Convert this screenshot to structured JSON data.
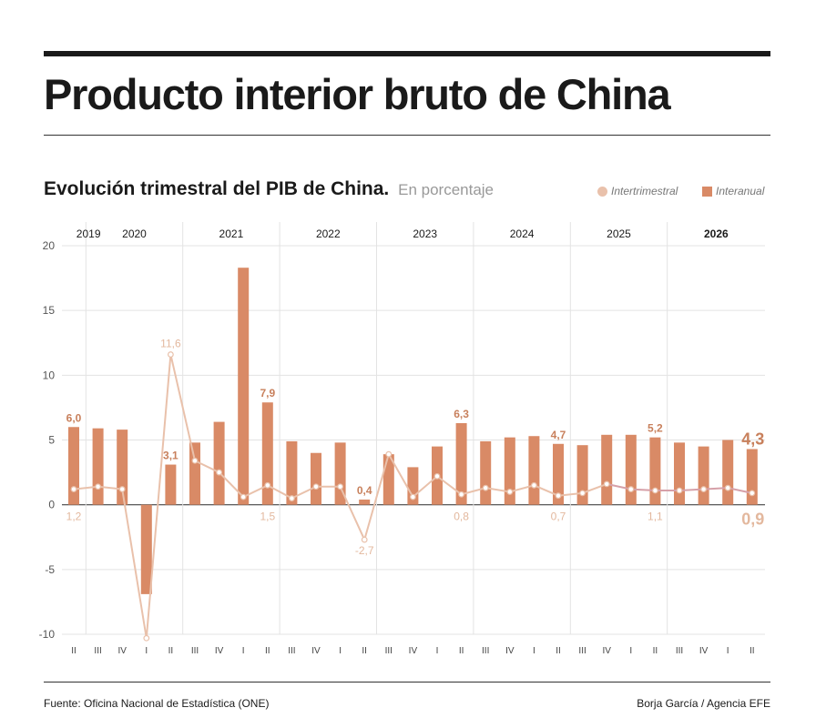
{
  "header": {
    "title": "Producto interior bruto de China",
    "subtitle": "Evolución trimestral del PIB de China.",
    "unit": "En porcentaje"
  },
  "legend": {
    "line_label": "Intertrimestral",
    "bar_label": "Interanual"
  },
  "footer": {
    "source": "Fuente: Oficina Nacional de Estadística (ONE)",
    "credit": "Borja García / Agencia EFE"
  },
  "colors": {
    "bar": "#d98a66",
    "line": "#e9c1ab",
    "line_recent": "#d6a0a8",
    "label_bar": "#c8805c",
    "label_line": "#e3b89e"
  },
  "chart_data": {
    "type": "bar",
    "ylim": [
      -10,
      20
    ],
    "yticks": [
      20,
      15,
      10,
      5,
      0,
      -5,
      -10
    ],
    "years": [
      {
        "label": "2019",
        "bold": false
      },
      {
        "label": "2020",
        "bold": false
      },
      {
        "label": "2021",
        "bold": false
      },
      {
        "label": "2022",
        "bold": false
      },
      {
        "label": "2023",
        "bold": false
      },
      {
        "label": "2024",
        "bold": false
      },
      {
        "label": "2025",
        "bold": false
      },
      {
        "label": "2026",
        "bold": true
      }
    ],
    "categories": [
      "II",
      "III",
      "IV",
      "I",
      "II",
      "III",
      "IV",
      "I",
      "II",
      "III",
      "IV",
      "I",
      "II",
      "III",
      "IV",
      "I",
      "II",
      "III",
      "IV",
      "I",
      "II",
      "III",
      "IV",
      "I",
      "II",
      "III",
      "IV",
      "I",
      "II"
    ],
    "series": [
      {
        "name": "Interanual",
        "kind": "bar",
        "values": [
          6.0,
          5.9,
          5.8,
          -6.9,
          3.1,
          4.8,
          6.4,
          18.3,
          7.9,
          4.9,
          4.0,
          4.8,
          0.4,
          3.9,
          2.9,
          4.5,
          6.3,
          4.9,
          5.2,
          5.3,
          4.7,
          4.6,
          5.4,
          5.4,
          5.2,
          4.8,
          4.5,
          5.0,
          4.3
        ],
        "labels": [
          {
            "index": 0,
            "text": "6,0"
          },
          {
            "index": 4,
            "text": "3,1"
          },
          {
            "index": 8,
            "text": "7,9"
          },
          {
            "index": 12,
            "text": "0,4"
          },
          {
            "index": 16,
            "text": "6,3"
          },
          {
            "index": 20,
            "text": "4,7"
          },
          {
            "index": 24,
            "text": "5,2"
          },
          {
            "index": 28,
            "text": "4,3",
            "emphasis": true
          }
        ]
      },
      {
        "name": "Intertrimestral",
        "kind": "line",
        "values": [
          1.2,
          1.4,
          1.2,
          -10.3,
          11.6,
          3.4,
          2.5,
          0.6,
          1.5,
          0.5,
          1.4,
          1.4,
          -2.7,
          3.9,
          0.6,
          2.2,
          0.8,
          1.3,
          1.0,
          1.5,
          0.7,
          0.9,
          1.6,
          1.2,
          1.1,
          1.1,
          1.2,
          1.3,
          0.9
        ],
        "labels": [
          {
            "index": 0,
            "text": "1,2"
          },
          {
            "index": 4,
            "text": "11,6"
          },
          {
            "index": 8,
            "text": "1,5"
          },
          {
            "index": 12,
            "text": "-2,7"
          },
          {
            "index": 16,
            "text": "0,8"
          },
          {
            "index": 20,
            "text": "0,7"
          },
          {
            "index": 24,
            "text": "1,1"
          },
          {
            "index": 28,
            "text": "0,9",
            "emphasis": true
          }
        ]
      }
    ]
  }
}
